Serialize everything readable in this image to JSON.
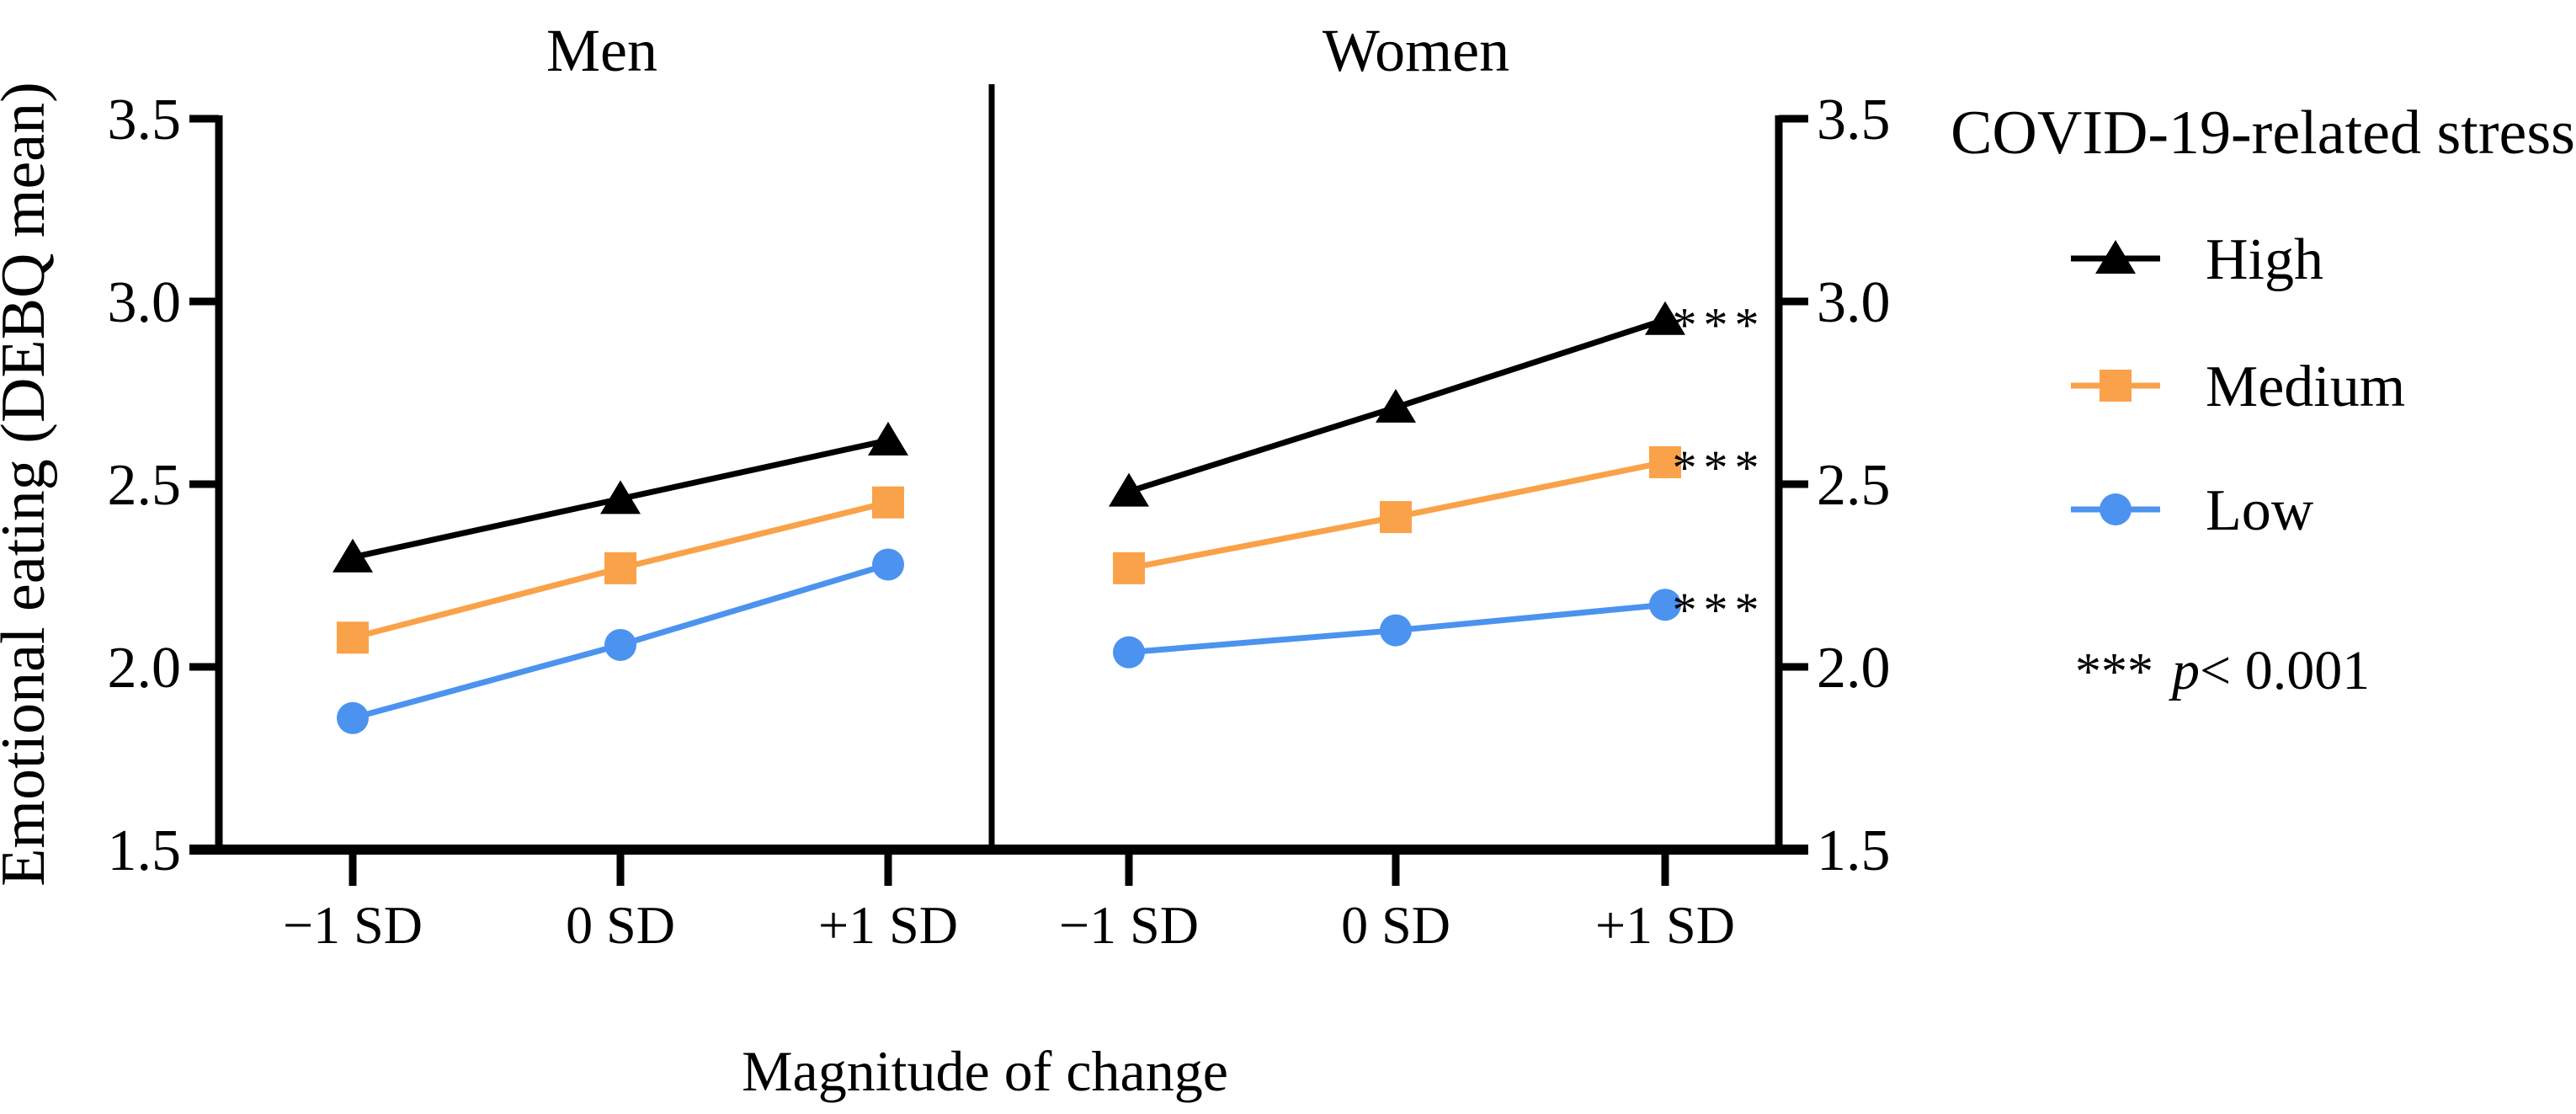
{
  "figure": {
    "background": "#ffffff",
    "text_color": "#000000"
  },
  "chart_data": {
    "type": "line",
    "title": "",
    "ylabel": "Emotional eating (DEBQ mean)",
    "xlabel": "Magnitude of change",
    "ylim": [
      1.5,
      3.5
    ],
    "yticks": [
      "1.5",
      "2.0",
      "2.5",
      "3.0",
      "3.5"
    ],
    "categories": [
      "−1 SD",
      "0 SD",
      "+1 SD"
    ],
    "grid": false,
    "panels": [
      {
        "title": "Men",
        "series": [
          {
            "name": "High",
            "marker": "triangle",
            "color": "#000000",
            "values": [
              2.3,
              2.46,
              2.62
            ]
          },
          {
            "name": "Medium",
            "marker": "square",
            "color": "#F9A24A",
            "values": [
              2.08,
              2.27,
              2.45
            ]
          },
          {
            "name": "Low",
            "marker": "circle",
            "color": "#4B93EE",
            "values": [
              1.86,
              2.06,
              2.28
            ]
          }
        ]
      },
      {
        "title": "Women",
        "series": [
          {
            "name": "High",
            "marker": "triangle",
            "color": "#000000",
            "values": [
              2.48,
              2.71,
              2.95
            ],
            "sig": "***"
          },
          {
            "name": "Medium",
            "marker": "square",
            "color": "#F9A24A",
            "values": [
              2.27,
              2.41,
              2.56
            ],
            "sig": "***"
          },
          {
            "name": "Low",
            "marker": "circle",
            "color": "#4B93EE",
            "values": [
              2.04,
              2.1,
              2.17
            ],
            "sig": "***"
          }
        ]
      }
    ],
    "legend": {
      "title": "COVID-19-related stress",
      "position": "right",
      "entries": [
        {
          "label": "High",
          "marker": "triangle",
          "color": "#000000"
        },
        {
          "label": "Medium",
          "marker": "square",
          "color": "#F9A24A"
        },
        {
          "label": "Low",
          "marker": "circle",
          "color": "#4B93EE"
        }
      ]
    },
    "annotation": {
      "stars": "***",
      "p": "p",
      "rest": "< 0.001"
    }
  }
}
